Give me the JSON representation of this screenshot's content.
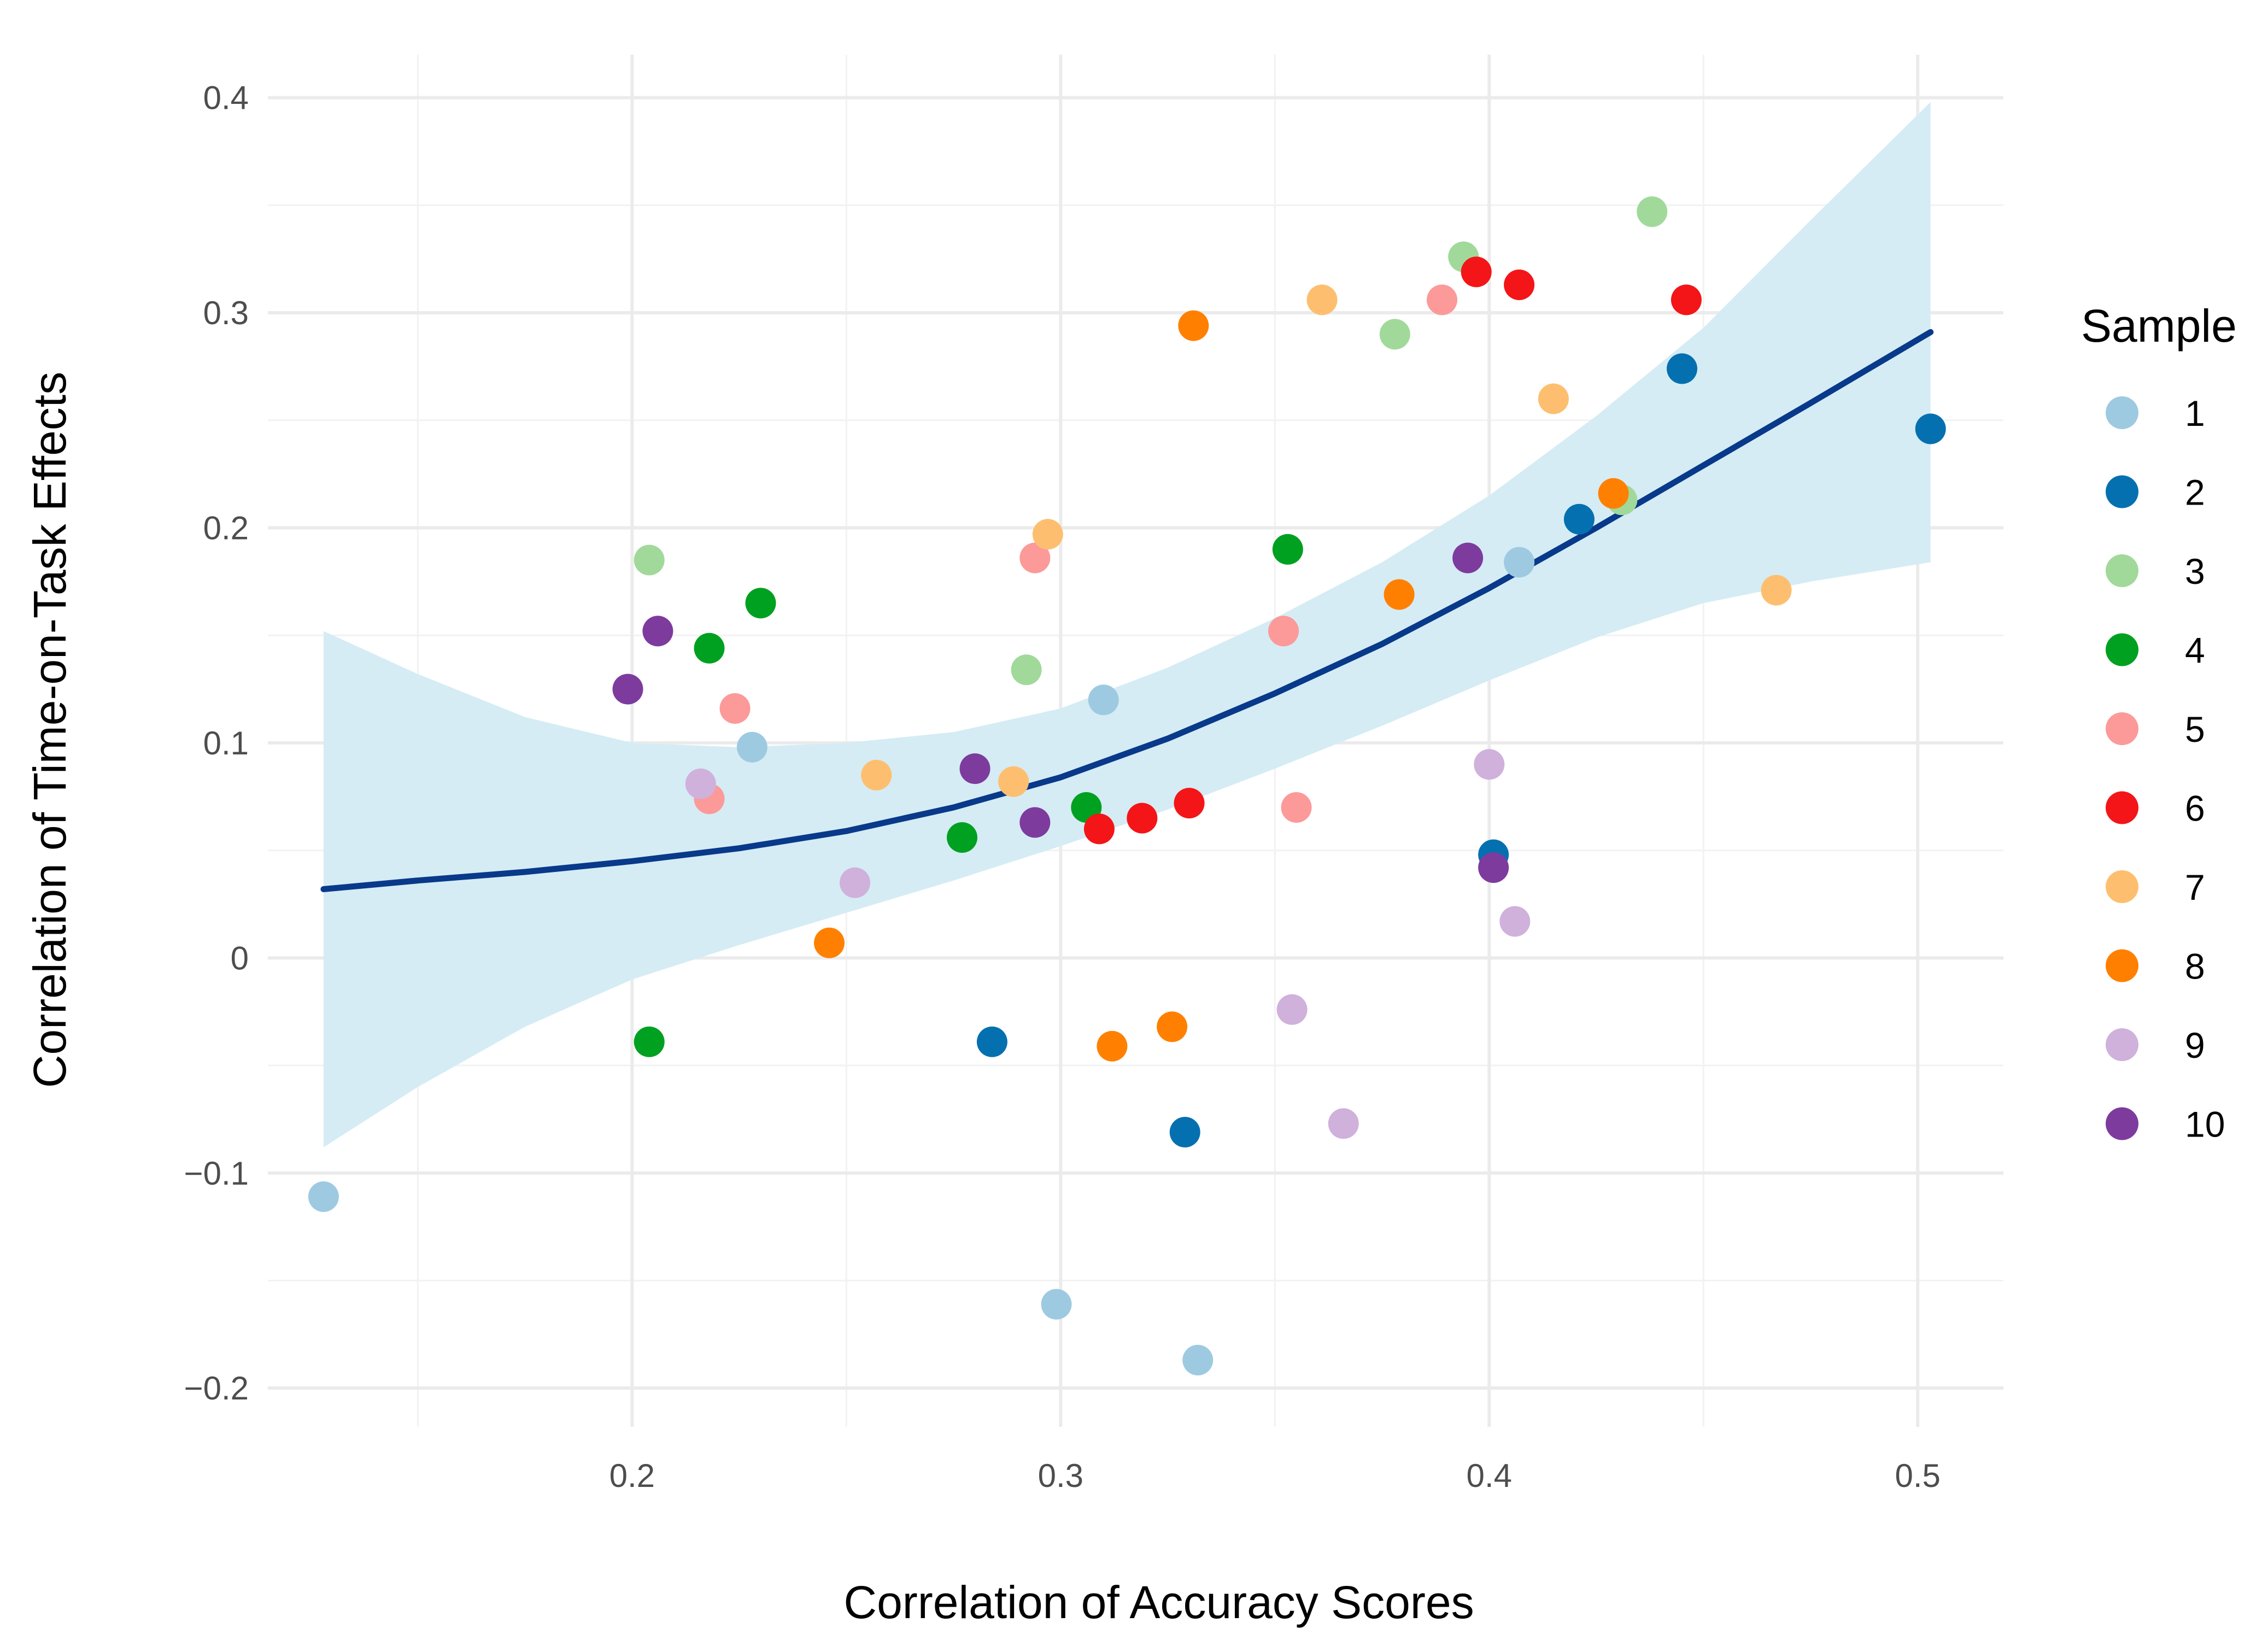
{
  "chart_data": {
    "type": "scatter",
    "title": "",
    "xlabel": "Correlation of Accuracy Scores",
    "ylabel": "Correlation of Time-on-Task Effects",
    "xlim": [
      0.115,
      0.52
    ],
    "ylim": [
      -0.218,
      0.42
    ],
    "x_ticks": [
      0.2,
      0.3,
      0.4,
      0.5
    ],
    "x_tick_labels": [
      "0.2",
      "0.3",
      "0.4",
      "0.5"
    ],
    "x_minor_ticks": [
      0.15,
      0.25,
      0.35,
      0.45
    ],
    "y_ticks": [
      -0.2,
      -0.1,
      0,
      0.1,
      0.2,
      0.3,
      0.4
    ],
    "y_tick_labels": [
      "−0.2",
      "−0.1",
      "0",
      "0.1",
      "0.2",
      "0.3",
      "0.4"
    ],
    "y_minor_ticks": [
      -0.15,
      -0.05,
      0.05,
      0.15,
      0.25,
      0.35
    ],
    "grid": true,
    "legend": {
      "title": "Sample",
      "position": "right"
    },
    "series": [
      {
        "name": "1",
        "color": "#9ECAE1",
        "points": [
          [
            0.128,
            -0.111
          ],
          [
            0.228,
            0.098
          ],
          [
            0.299,
            -0.161
          ],
          [
            0.31,
            0.12
          ],
          [
            0.332,
            -0.187
          ],
          [
            0.407,
            0.184
          ]
        ]
      },
      {
        "name": "2",
        "color": "#0570B0",
        "points": [
          [
            0.284,
            -0.039
          ],
          [
            0.329,
            -0.081
          ],
          [
            0.401,
            0.048
          ],
          [
            0.421,
            0.204
          ],
          [
            0.445,
            0.274
          ],
          [
            0.503,
            0.246
          ]
        ]
      },
      {
        "name": "3",
        "color": "#A1D99B",
        "points": [
          [
            0.204,
            0.185
          ],
          [
            0.292,
            0.134
          ],
          [
            0.378,
            0.29
          ],
          [
            0.394,
            0.326
          ],
          [
            0.431,
            0.213
          ],
          [
            0.438,
            0.347
          ]
        ]
      },
      {
        "name": "4",
        "color": "#00A020",
        "points": [
          [
            0.204,
            -0.039
          ],
          [
            0.218,
            0.144
          ],
          [
            0.23,
            0.165
          ],
          [
            0.277,
            0.056
          ],
          [
            0.306,
            0.07
          ],
          [
            0.353,
            0.19
          ]
        ]
      },
      {
        "name": "5",
        "color": "#FB9A99",
        "points": [
          [
            0.218,
            0.074
          ],
          [
            0.224,
            0.116
          ],
          [
            0.294,
            0.186
          ],
          [
            0.352,
            0.152
          ],
          [
            0.355,
            0.07
          ],
          [
            0.389,
            0.306
          ]
        ]
      },
      {
        "name": "6",
        "color": "#F31517",
        "points": [
          [
            0.309,
            0.06
          ],
          [
            0.319,
            0.065
          ],
          [
            0.33,
            0.072
          ],
          [
            0.397,
            0.319
          ],
          [
            0.407,
            0.313
          ],
          [
            0.446,
            0.306
          ]
        ]
      },
      {
        "name": "7",
        "color": "#FDBF6F",
        "points": [
          [
            0.257,
            0.085
          ],
          [
            0.289,
            0.082
          ],
          [
            0.297,
            0.197
          ],
          [
            0.361,
            0.306
          ],
          [
            0.415,
            0.26
          ],
          [
            0.467,
            0.171
          ]
        ]
      },
      {
        "name": "8",
        "color": "#FF8000",
        "points": [
          [
            0.246,
            0.007
          ],
          [
            0.312,
            -0.041
          ],
          [
            0.326,
            -0.032
          ],
          [
            0.331,
            0.294
          ],
          [
            0.379,
            0.169
          ],
          [
            0.429,
            0.216
          ]
        ]
      },
      {
        "name": "9",
        "color": "#CFB1DC",
        "points": [
          [
            0.216,
            0.081
          ],
          [
            0.252,
            0.035
          ],
          [
            0.354,
            -0.024
          ],
          [
            0.366,
            -0.077
          ],
          [
            0.4,
            0.09
          ],
          [
            0.406,
            0.017
          ]
        ]
      },
      {
        "name": "10",
        "color": "#7D3B9E",
        "points": [
          [
            0.199,
            0.125
          ],
          [
            0.206,
            0.152
          ],
          [
            0.28,
            0.088
          ],
          [
            0.294,
            0.063
          ],
          [
            0.395,
            0.186
          ],
          [
            0.401,
            0.042
          ]
        ]
      }
    ],
    "trend": {
      "color": "#08398A",
      "ribbon_color": "#D5ECF4",
      "x": [
        0.128,
        0.15,
        0.175,
        0.2,
        0.225,
        0.25,
        0.275,
        0.3,
        0.325,
        0.35,
        0.375,
        0.4,
        0.425,
        0.45,
        0.475,
        0.503
      ],
      "fit": [
        0.032,
        0.036,
        0.04,
        0.045,
        0.051,
        0.059,
        0.07,
        0.084,
        0.102,
        0.123,
        0.146,
        0.172,
        0.2,
        0.229,
        0.258,
        0.291
      ],
      "lower": [
        -0.088,
        -0.06,
        -0.032,
        -0.01,
        0.006,
        0.021,
        0.036,
        0.052,
        0.069,
        0.088,
        0.108,
        0.129,
        0.149,
        0.165,
        0.175,
        0.184
      ],
      "upper": [
        0.152,
        0.132,
        0.112,
        0.1,
        0.098,
        0.1,
        0.105,
        0.116,
        0.135,
        0.158,
        0.184,
        0.215,
        0.252,
        0.293,
        0.343,
        0.398
      ]
    }
  }
}
